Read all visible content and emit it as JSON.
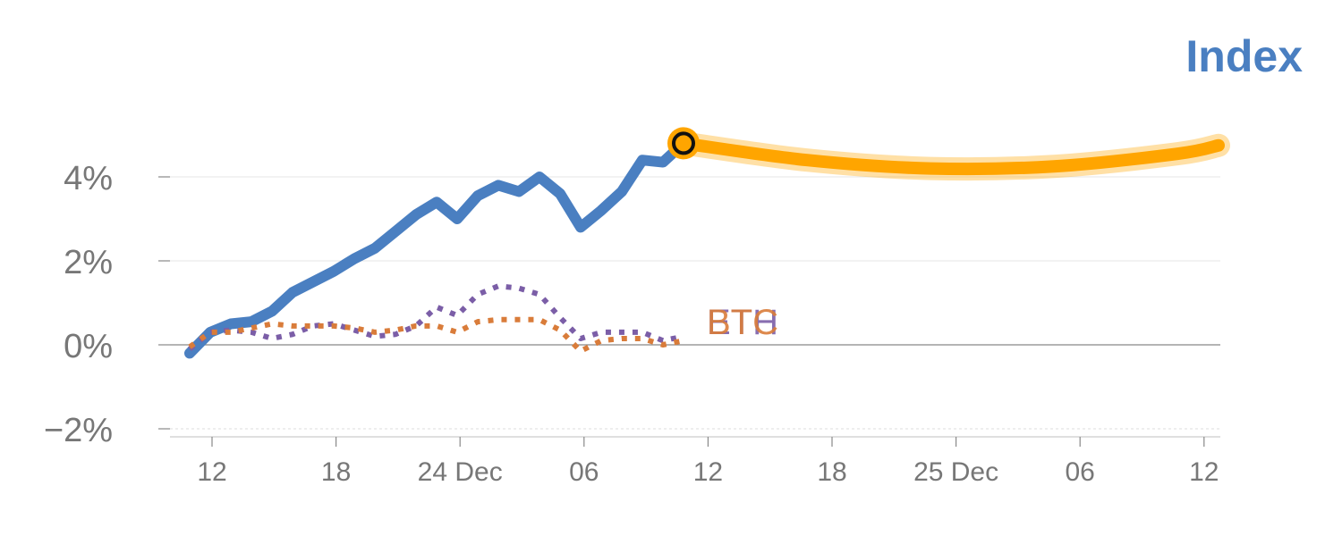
{
  "chart_data": {
    "type": "line",
    "title": "Index",
    "ylim": [
      -2,
      5.2
    ],
    "y_ticks": [
      {
        "value": 4,
        "label": "4%"
      },
      {
        "value": 2,
        "label": "2%"
      },
      {
        "value": 0,
        "label": "0%"
      },
      {
        "value": -2,
        "label": "−2%"
      }
    ],
    "x_ticks": [
      "12",
      "18",
      "24 Dec",
      "06",
      "12",
      "18",
      "25 Dec",
      "06",
      "12"
    ],
    "grid": true,
    "series": [
      {
        "name": "",
        "style": "solid",
        "color": "#4a7fc1",
        "values": [
          -0.2,
          0.3,
          0.5,
          0.55,
          0.8,
          1.25,
          1.5,
          1.75,
          2.05,
          2.3,
          2.7,
          3.1,
          3.4,
          3.0,
          3.55,
          3.8,
          3.65,
          4.0,
          3.6,
          2.8,
          3.2,
          3.65,
          4.4,
          4.35,
          4.8
        ]
      },
      {
        "name": "ETH",
        "style": "dotted",
        "color": "#7b5ea7",
        "values": [
          -0.1,
          0.3,
          0.35,
          0.3,
          0.15,
          0.25,
          0.45,
          0.5,
          0.35,
          0.2,
          0.25,
          0.45,
          0.9,
          0.7,
          1.2,
          1.4,
          1.35,
          1.2,
          0.65,
          0.15,
          0.3,
          0.3,
          0.3,
          0.1,
          0.2
        ]
      },
      {
        "name": "BTC",
        "style": "dotted",
        "color": "#d97c3a",
        "values": [
          -0.05,
          0.3,
          0.3,
          0.4,
          0.5,
          0.45,
          0.45,
          0.45,
          0.4,
          0.3,
          0.35,
          0.45,
          0.45,
          0.3,
          0.55,
          0.6,
          0.6,
          0.6,
          0.35,
          -0.15,
          0.1,
          0.15,
          0.15,
          0.0,
          0.1
        ]
      },
      {
        "name": "",
        "style": "forecast",
        "color": "#ffa500",
        "x_start_index": 24,
        "values_at_day": [
          [
            24,
            4.8
          ],
          [
            30,
            4.4
          ],
          [
            36,
            4.2
          ],
          [
            42,
            4.25
          ],
          [
            48,
            4.55
          ],
          [
            50,
            4.75
          ]
        ]
      }
    ],
    "marker": {
      "index": 24,
      "value": 4.8
    }
  }
}
